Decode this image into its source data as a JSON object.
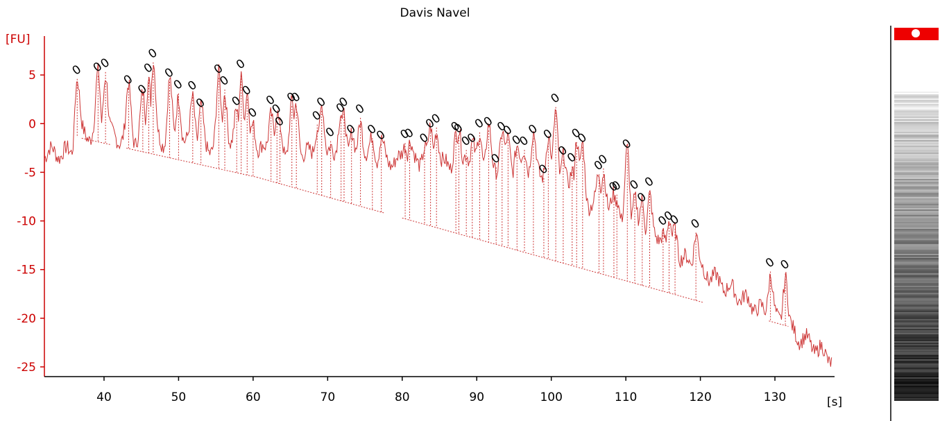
{
  "chart_data": {
    "type": "line",
    "title": "Davis Navel",
    "xlabel": "[s]",
    "ylabel": "[FU]",
    "xlim": [
      32,
      138
    ],
    "ylim": [
      -26,
      9
    ],
    "x_ticks": [
      40,
      50,
      60,
      70,
      80,
      90,
      100,
      110,
      120,
      130
    ],
    "y_ticks": [
      5,
      0,
      -5,
      -10,
      -15,
      -20,
      -25
    ],
    "colors": {
      "signal": "#cc3333",
      "axis": "#cc0000",
      "peak_marker": "#000000",
      "gel_band": "#000000",
      "gel_marker": "#ee0000"
    },
    "peak_marker_label": "0",
    "peaks": [
      {
        "x": 36.4,
        "y": 5.5
      },
      {
        "x": 39.2,
        "y": 5.8
      },
      {
        "x": 40.2,
        "y": 6.2
      },
      {
        "x": 43.3,
        "y": 4.5
      },
      {
        "x": 45.2,
        "y": 3.5
      },
      {
        "x": 46.0,
        "y": 5.7
      },
      {
        "x": 46.6,
        "y": 7.2
      },
      {
        "x": 48.8,
        "y": 5.2
      },
      {
        "x": 50.0,
        "y": 4.0
      },
      {
        "x": 51.9,
        "y": 3.9
      },
      {
        "x": 53.0,
        "y": 2.1
      },
      {
        "x": 55.4,
        "y": 5.6
      },
      {
        "x": 56.2,
        "y": 4.4
      },
      {
        "x": 57.8,
        "y": 2.3
      },
      {
        "x": 58.4,
        "y": 6.1
      },
      {
        "x": 59.2,
        "y": 3.4
      },
      {
        "x": 60.0,
        "y": 1.1
      },
      {
        "x": 62.4,
        "y": 2.4
      },
      {
        "x": 63.2,
        "y": 1.5
      },
      {
        "x": 63.6,
        "y": 0.2
      },
      {
        "x": 65.2,
        "y": 2.7
      },
      {
        "x": 65.8,
        "y": 2.7
      },
      {
        "x": 68.6,
        "y": 0.8
      },
      {
        "x": 69.2,
        "y": 2.2
      },
      {
        "x": 70.4,
        "y": -0.9
      },
      {
        "x": 71.8,
        "y": 1.6
      },
      {
        "x": 72.2,
        "y": 2.2
      },
      {
        "x": 73.2,
        "y": -0.6
      },
      {
        "x": 74.4,
        "y": 1.5
      },
      {
        "x": 76.0,
        "y": -0.6
      },
      {
        "x": 77.2,
        "y": -1.2
      },
      {
        "x": 80.4,
        "y": -1.1
      },
      {
        "x": 81.0,
        "y": -1.0
      },
      {
        "x": 83.0,
        "y": -1.5
      },
      {
        "x": 83.8,
        "y": 0.0
      },
      {
        "x": 84.6,
        "y": 0.5
      },
      {
        "x": 87.2,
        "y": -0.3
      },
      {
        "x": 87.6,
        "y": -0.5
      },
      {
        "x": 88.6,
        "y": -1.8
      },
      {
        "x": 89.4,
        "y": -1.5
      },
      {
        "x": 90.4,
        "y": 0.0
      },
      {
        "x": 91.6,
        "y": 0.2
      },
      {
        "x": 92.6,
        "y": -3.6
      },
      {
        "x": 93.4,
        "y": -0.3
      },
      {
        "x": 94.2,
        "y": -0.7
      },
      {
        "x": 95.4,
        "y": -1.7
      },
      {
        "x": 96.4,
        "y": -1.8
      },
      {
        "x": 97.6,
        "y": -0.6
      },
      {
        "x": 99.0,
        "y": -4.7
      },
      {
        "x": 99.6,
        "y": -1.1
      },
      {
        "x": 100.6,
        "y": 2.6
      },
      {
        "x": 101.6,
        "y": -2.8
      },
      {
        "x": 102.8,
        "y": -3.5
      },
      {
        "x": 103.4,
        "y": -1.0
      },
      {
        "x": 104.2,
        "y": -1.5
      },
      {
        "x": 106.4,
        "y": -4.3
      },
      {
        "x": 107.0,
        "y": -3.7
      },
      {
        "x": 108.4,
        "y": -6.5
      },
      {
        "x": 108.8,
        "y": -6.4
      },
      {
        "x": 110.2,
        "y": -2.1
      },
      {
        "x": 111.2,
        "y": -6.3
      },
      {
        "x": 112.2,
        "y": -7.6
      },
      {
        "x": 113.2,
        "y": -6.0
      },
      {
        "x": 115.0,
        "y": -10.0
      },
      {
        "x": 115.8,
        "y": -9.5
      },
      {
        "x": 116.6,
        "y": -9.9
      },
      {
        "x": 119.4,
        "y": -10.3
      },
      {
        "x": 129.4,
        "y": -14.3
      },
      {
        "x": 131.4,
        "y": -14.5
      }
    ]
  }
}
